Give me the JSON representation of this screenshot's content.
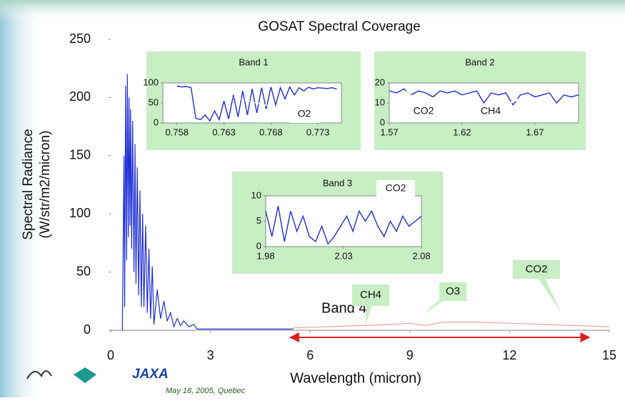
{
  "header": {
    "footer": "May 18, 2005, Quebec",
    "logo_text": "JAXA"
  },
  "chart_data": [
    {
      "type": "line",
      "title": "GOSAT Spectral Coverage",
      "x_label": "Wavelength (micron)",
      "y_label_lines": [
        "Spectral Radiance",
        "(W/str/m2/micron)"
      ],
      "xlim": [
        0,
        15
      ],
      "xticks": [
        0,
        3,
        6,
        9,
        12,
        15
      ],
      "ylim": [
        0,
        250
      ],
      "yticks": [
        0,
        50,
        100,
        150,
        200,
        250
      ],
      "series": [
        {
          "color": "#1f2fd6",
          "x": [
            0.35,
            0.4,
            0.42,
            0.45,
            0.48,
            0.5,
            0.53,
            0.55,
            0.58,
            0.6,
            0.63,
            0.66,
            0.7,
            0.73,
            0.76,
            0.8,
            0.84,
            0.88,
            0.92,
            0.96,
            1.0,
            1.05,
            1.1,
            1.15,
            1.2,
            1.25,
            1.3,
            1.4,
            1.5,
            1.6,
            1.7,
            1.8,
            1.9,
            2.0,
            2.1,
            2.2,
            2.35,
            2.5,
            2.6,
            3.5,
            5.5
          ],
          "values": [
            0,
            150,
            20,
            210,
            60,
            220,
            80,
            200,
            90,
            190,
            70,
            180,
            50,
            160,
            40,
            140,
            30,
            120,
            20,
            100,
            20,
            90,
            15,
            70,
            10,
            55,
            5,
            35,
            10,
            25,
            8,
            15,
            3,
            10,
            4,
            8,
            3,
            5,
            1,
            1,
            1
          ]
        },
        {
          "color": "#f0a0a0",
          "x": [
            5.5,
            6.5,
            7.5,
            8.5,
            9,
            9.5,
            10,
            11,
            12,
            13,
            14,
            15
          ],
          "values": [
            2,
            3,
            4,
            5,
            6,
            4,
            7,
            7,
            6,
            5,
            4,
            3
          ]
        }
      ],
      "annotations": [
        "Band 4",
        "CH4",
        "O3",
        "CO2"
      ],
      "band_range": [
        5.4,
        14.4
      ]
    },
    {
      "type": "line",
      "title": "Band 1",
      "xlim": [
        0.7565,
        0.7755
      ],
      "xticks": [
        0.758,
        0.763,
        0.768,
        0.773
      ],
      "ylim": [
        0,
        100
      ],
      "yticks": [
        0,
        50,
        100
      ],
      "series": [
        {
          "color": "#1f2fd6",
          "x": [
            0.758,
            0.7585,
            0.759,
            0.7595,
            0.76,
            0.7605,
            0.761,
            0.7615,
            0.762,
            0.7625,
            0.763,
            0.7635,
            0.764,
            0.7645,
            0.765,
            0.7655,
            0.766,
            0.7665,
            0.767,
            0.7675,
            0.768,
            0.7685,
            0.769,
            0.7695,
            0.77,
            0.7705,
            0.771,
            0.7715,
            0.772,
            0.7725,
            0.773,
            0.7735,
            0.774,
            0.7745,
            0.775
          ],
          "values": [
            92,
            90,
            91,
            88,
            12,
            8,
            20,
            5,
            30,
            8,
            55,
            10,
            70,
            15,
            80,
            20,
            85,
            25,
            88,
            35,
            90,
            45,
            88,
            60,
            90,
            70,
            88,
            80,
            89,
            85,
            88,
            87,
            86,
            88,
            85
          ]
        }
      ],
      "annotations": [
        "O2"
      ]
    },
    {
      "type": "line",
      "title": "Band 2",
      "xlim": [
        1.57,
        1.7
      ],
      "xticks": [
        1.57,
        1.62,
        1.67
      ],
      "ylim": [
        0,
        20
      ],
      "yticks": [
        0,
        10,
        20
      ],
      "series": [
        {
          "color": "#1f2fd6",
          "x": [
            1.57,
            1.575,
            1.58,
            1.585,
            1.59,
            1.595,
            1.6,
            1.605,
            1.61,
            1.615,
            1.62,
            1.625,
            1.63,
            1.635,
            1.64,
            1.645,
            1.65,
            1.655,
            1.66,
            1.665,
            1.67,
            1.675,
            1.68,
            1.685,
            1.69,
            1.695,
            1.7
          ],
          "values": [
            16,
            15,
            17,
            14,
            16,
            15,
            13,
            16,
            15,
            16,
            14,
            15,
            16,
            10,
            15,
            14,
            15,
            9,
            14,
            15,
            13,
            14,
            15,
            10,
            14,
            13,
            14
          ]
        }
      ],
      "annotations": [
        "CO2",
        "CH4"
      ]
    },
    {
      "type": "line",
      "title": "Band 3",
      "xlim": [
        1.98,
        2.08
      ],
      "xticks": [
        1.98,
        2.03,
        2.08
      ],
      "ylim": [
        0,
        10
      ],
      "yticks": [
        0,
        5,
        10
      ],
      "series": [
        {
          "color": "#1f2fd6",
          "x": [
            1.98,
            1.984,
            1.988,
            1.992,
            1.996,
            2.0,
            2.004,
            2.008,
            2.012,
            2.016,
            2.02,
            2.024,
            2.028,
            2.032,
            2.036,
            2.04,
            2.044,
            2.048,
            2.052,
            2.056,
            2.06,
            2.064,
            2.068,
            2.072,
            2.076,
            2.08
          ],
          "values": [
            7,
            2,
            8,
            1,
            7,
            3,
            6,
            2,
            1,
            4,
            0.5,
            2,
            4,
            6,
            3,
            7,
            5,
            7,
            4,
            2,
            5,
            3,
            6,
            4,
            5,
            6
          ]
        }
      ],
      "annotations": [
        "CO2"
      ]
    }
  ]
}
